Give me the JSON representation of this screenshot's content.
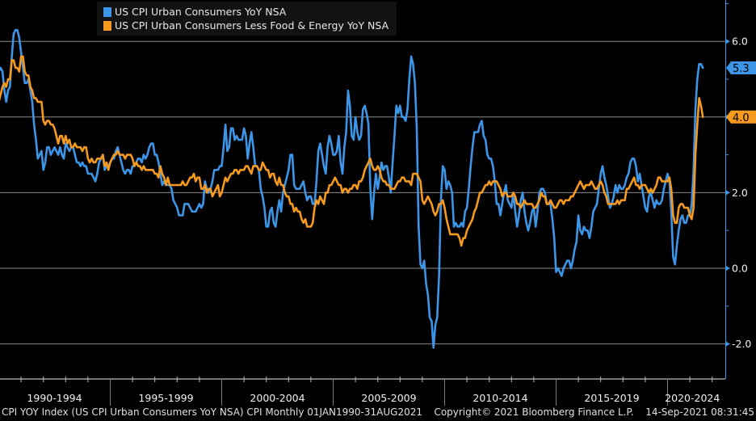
{
  "legend": {
    "items": [
      {
        "label": "US CPI Urban Consumers YoY NSA",
        "color": "#3d95e8"
      },
      {
        "label": "US CPI Urban Consumers Less Food & Energy YoY NSA",
        "color": "#f59a1f"
      }
    ]
  },
  "footer": {
    "security": "CPI YOY Index (US CPI Urban Consumers YoY NSA) CPI  Monthly 01JAN1990-31AUG2021",
    "copyright": "Copyright© 2021 Bloomberg Finance L.P.",
    "timestamp": "14-Sep-2021 08:31:45"
  },
  "chart_data": {
    "type": "line",
    "title": "",
    "xlabel": "",
    "ylabel": "",
    "frequency": "monthly",
    "x_start": "1990-01",
    "x_end": "2021-08",
    "x_tick_labels": [
      "1990-1994",
      "1995-1999",
      "2000-2004",
      "2005-2009",
      "2010-2014",
      "2015-2019",
      "2020-2024"
    ],
    "y_ticks": [
      6.0,
      4.0,
      2.0,
      0.0,
      -2.0
    ],
    "y_tick_labels": [
      "6.0",
      "4.0",
      "2.0",
      "0.0",
      "-2.0"
    ],
    "ylim": [
      -2.8,
      7.0
    ],
    "grid": true,
    "legend_position": "top-left",
    "axis_side": "right",
    "last_value_tags": [
      {
        "series": "US CPI Urban Consumers YoY NSA",
        "label": "5.3",
        "value": 5.3,
        "color": "#3d95e8"
      },
      {
        "series": "US CPI Urban Consumers Less Food & Energy YoY NSA",
        "label": "4.0",
        "value": 4.0,
        "color": "#f59a1f"
      }
    ],
    "series": [
      {
        "name": "US CPI Urban Consumers YoY NSA",
        "color": "#3d95e8",
        "values": [
          5.2,
          5.3,
          5.2,
          4.7,
          4.4,
          4.7,
          4.8,
          5.6,
          6.2,
          6.3,
          6.3,
          6.1,
          5.7,
          5.3,
          4.9,
          4.9,
          5.0,
          4.7,
          4.4,
          3.8,
          3.4,
          2.9,
          3.0,
          3.1,
          2.6,
          2.8,
          3.2,
          3.2,
          3.0,
          3.1,
          3.2,
          3.1,
          3.0,
          3.2,
          3.0,
          2.9,
          3.3,
          3.2,
          3.1,
          3.2,
          3.2,
          3.0,
          2.8,
          2.8,
          2.7,
          2.8,
          2.7,
          2.7,
          2.5,
          2.5,
          2.5,
          2.4,
          2.3,
          2.5,
          2.8,
          2.9,
          3.0,
          2.6,
          2.7,
          2.7,
          2.8,
          2.9,
          2.9,
          3.1,
          3.2,
          3.0,
          2.8,
          2.6,
          2.5,
          2.6,
          2.6,
          2.5,
          2.7,
          2.7,
          2.8,
          2.9,
          2.9,
          2.8,
          3.0,
          2.9,
          3.0,
          3.2,
          3.3,
          3.3,
          3.0,
          3.0,
          2.8,
          2.5,
          2.2,
          2.3,
          2.2,
          2.2,
          2.2,
          2.1,
          1.8,
          1.7,
          1.6,
          1.4,
          1.4,
          1.4,
          1.7,
          1.7,
          1.7,
          1.6,
          1.5,
          1.5,
          1.5,
          1.6,
          1.7,
          1.6,
          1.7,
          2.3,
          2.1,
          2.0,
          2.1,
          2.3,
          2.6,
          2.6,
          2.6,
          2.7,
          2.7,
          3.2,
          3.8,
          3.1,
          3.2,
          3.7,
          3.7,
          3.4,
          3.5,
          3.4,
          3.4,
          3.4,
          3.7,
          3.5,
          2.9,
          3.3,
          3.6,
          3.2,
          2.7,
          2.7,
          2.6,
          2.1,
          1.9,
          1.6,
          1.1,
          1.1,
          1.5,
          1.6,
          1.2,
          1.1,
          1.5,
          1.8,
          1.5,
          2.0,
          2.2,
          2.4,
          2.6,
          3.0,
          3.0,
          2.2,
          2.1,
          2.1,
          2.1,
          2.2,
          2.3,
          2.0,
          1.8,
          1.9,
          1.9,
          1.7,
          1.7,
          2.3,
          3.1,
          3.3,
          3.0,
          2.7,
          2.5,
          3.2,
          3.5,
          3.3,
          3.0,
          3.0,
          3.1,
          3.5,
          2.8,
          2.5,
          3.2,
          3.6,
          4.7,
          4.3,
          3.5,
          3.4,
          4.0,
          3.6,
          3.4,
          3.5,
          4.2,
          4.3,
          4.1,
          3.8,
          2.1,
          1.3,
          2.0,
          2.5,
          2.1,
          2.4,
          2.8,
          2.6,
          2.7,
          2.7,
          2.4,
          2.0,
          2.8,
          3.5,
          4.3,
          4.1,
          4.3,
          4.0,
          4.0,
          3.9,
          4.2,
          5.0,
          5.6,
          5.4,
          4.9,
          3.7,
          1.1,
          0.1,
          0.0,
          0.2,
          -0.4,
          -0.7,
          -1.3,
          -1.4,
          -2.1,
          -1.5,
          -1.3,
          -0.2,
          1.8,
          2.7,
          2.6,
          2.1,
          2.3,
          2.2,
          2.0,
          1.1,
          1.2,
          1.1,
          1.1,
          1.2,
          1.1,
          1.5,
          1.6,
          2.1,
          2.7,
          3.2,
          3.6,
          3.6,
          3.6,
          3.8,
          3.9,
          3.5,
          3.4,
          3.0,
          2.9,
          2.9,
          2.7,
          2.3,
          1.7,
          1.7,
          1.4,
          1.7,
          2.0,
          2.2,
          1.8,
          1.7,
          1.6,
          2.0,
          1.5,
          1.1,
          1.4,
          1.8,
          2.0,
          1.5,
          1.2,
          1.0,
          1.2,
          1.5,
          1.6,
          1.1,
          1.5,
          2.0,
          2.1,
          2.1,
          2.0,
          1.7,
          1.7,
          1.7,
          1.3,
          0.8,
          -0.1,
          0.0,
          -0.1,
          -0.2,
          0.0,
          0.1,
          0.2,
          0.2,
          0.0,
          0.2,
          0.5,
          0.7,
          1.4,
          1.0,
          0.9,
          1.1,
          1.0,
          1.0,
          0.8,
          1.1,
          1.5,
          1.6,
          1.7,
          2.1,
          2.5,
          2.7,
          2.4,
          2.2,
          1.9,
          1.6,
          1.7,
          1.9,
          2.2,
          2.0,
          2.2,
          2.1,
          2.1,
          2.2,
          2.4,
          2.5,
          2.8,
          2.9,
          2.9,
          2.7,
          2.3,
          2.5,
          2.2,
          1.9,
          1.6,
          1.5,
          1.9,
          2.0,
          1.8,
          1.6,
          1.8,
          1.7,
          1.7,
          1.8,
          2.1,
          2.3,
          2.5,
          2.3,
          1.5,
          0.3,
          0.1,
          0.6,
          1.0,
          1.3,
          1.4,
          1.2,
          1.2,
          1.4,
          1.4,
          1.7,
          2.6,
          4.2,
          5.0,
          5.4,
          5.4,
          5.3
        ]
      },
      {
        "name": "US CPI Urban Consumers Less Food & Energy YoY NSA",
        "color": "#f59a1f",
        "values": [
          4.4,
          4.6,
          4.8,
          4.9,
          4.8,
          5.0,
          5.0,
          5.5,
          5.5,
          5.3,
          5.3,
          5.2,
          5.6,
          5.6,
          5.2,
          5.1,
          5.1,
          4.8,
          4.7,
          4.5,
          4.5,
          4.4,
          4.4,
          4.4,
          3.9,
          3.8,
          3.9,
          3.9,
          3.8,
          3.8,
          3.7,
          3.5,
          3.3,
          3.5,
          3.5,
          3.3,
          3.5,
          3.3,
          3.4,
          3.2,
          3.2,
          3.3,
          3.2,
          3.2,
          3.2,
          3.1,
          3.2,
          3.2,
          2.9,
          2.8,
          2.9,
          2.8,
          2.8,
          2.9,
          2.9,
          2.9,
          3.0,
          2.7,
          2.8,
          2.6,
          2.8,
          2.9,
          3.0,
          3.0,
          3.1,
          3.0,
          3.0,
          3.0,
          2.9,
          3.0,
          3.0,
          3.0,
          2.9,
          2.7,
          2.8,
          2.7,
          2.7,
          2.6,
          2.7,
          2.6,
          2.6,
          2.6,
          2.6,
          2.6,
          2.5,
          2.5,
          2.4,
          2.7,
          2.5,
          2.4,
          2.2,
          2.4,
          2.2,
          2.2,
          2.2,
          2.2,
          2.2,
          2.2,
          2.2,
          2.3,
          2.2,
          2.2,
          2.3,
          2.4,
          2.4,
          2.5,
          2.3,
          2.4,
          2.4,
          2.1,
          2.1,
          2.2,
          2.0,
          2.1,
          2.1,
          1.9,
          2.0,
          2.1,
          2.2,
          1.9,
          2.0,
          2.2,
          2.4,
          2.3,
          2.4,
          2.5,
          2.5,
          2.6,
          2.6,
          2.5,
          2.6,
          2.6,
          2.6,
          2.7,
          2.7,
          2.6,
          2.5,
          2.7,
          2.7,
          2.7,
          2.6,
          2.6,
          2.8,
          2.7,
          2.6,
          2.6,
          2.4,
          2.5,
          2.5,
          2.3,
          2.2,
          2.4,
          2.2,
          2.2,
          2.0,
          1.9,
          1.9,
          1.7,
          1.7,
          1.5,
          1.6,
          1.5,
          1.5,
          1.3,
          1.2,
          1.3,
          1.1,
          1.1,
          1.1,
          1.2,
          1.6,
          1.8,
          1.7,
          1.9,
          1.8,
          1.7,
          2.0,
          2.0,
          2.2,
          2.2,
          2.3,
          2.4,
          2.3,
          2.2,
          2.2,
          2.0,
          2.1,
          2.1,
          2.0,
          2.1,
          2.1,
          2.2,
          2.2,
          2.1,
          2.3,
          2.3,
          2.4,
          2.6,
          2.7,
          2.8,
          2.9,
          2.7,
          2.6,
          2.6,
          2.7,
          2.6,
          2.4,
          2.3,
          2.3,
          2.2,
          2.2,
          2.1,
          2.1,
          2.1,
          2.2,
          2.3,
          2.3,
          2.4,
          2.4,
          2.3,
          2.3,
          2.3,
          2.2,
          2.5,
          2.5,
          2.5,
          2.4,
          2.3,
          1.8,
          1.7,
          1.8,
          1.9,
          1.8,
          1.7,
          1.5,
          1.4,
          1.5,
          1.7,
          1.7,
          1.8,
          1.6,
          1.3,
          1.1,
          0.9,
          0.9,
          0.9,
          0.9,
          0.9,
          0.8,
          0.6,
          0.8,
          0.8,
          1.0,
          1.1,
          1.2,
          1.3,
          1.5,
          1.6,
          1.8,
          2.0,
          2.0,
          2.1,
          2.2,
          2.2,
          2.3,
          2.2,
          2.3,
          2.3,
          2.3,
          2.2,
          2.1,
          1.9,
          2.0,
          2.0,
          1.9,
          1.9,
          1.9,
          2.0,
          1.9,
          1.7,
          1.7,
          1.6,
          1.7,
          1.8,
          1.7,
          1.7,
          1.7,
          1.7,
          1.6,
          1.6,
          1.7,
          1.8,
          2.0,
          1.9,
          1.9,
          1.7,
          1.7,
          1.8,
          1.7,
          1.6,
          1.6,
          1.7,
          1.8,
          1.8,
          1.7,
          1.8,
          1.8,
          1.8,
          1.9,
          1.9,
          2.0,
          2.1,
          2.2,
          2.3,
          2.2,
          2.1,
          2.2,
          2.2,
          2.2,
          2.3,
          2.2,
          2.1,
          2.1,
          2.2,
          2.3,
          2.2,
          2.0,
          1.9,
          1.7,
          1.7,
          1.7,
          1.7,
          1.7,
          1.8,
          1.7,
          1.8,
          1.8,
          1.8,
          2.1,
          2.1,
          2.2,
          2.3,
          2.4,
          2.2,
          2.2,
          2.1,
          2.2,
          2.2,
          2.2,
          2.1,
          2.0,
          2.1,
          2.0,
          2.1,
          2.2,
          2.4,
          2.4,
          2.3,
          2.3,
          2.3,
          2.3,
          2.4,
          2.1,
          1.4,
          1.2,
          1.2,
          1.6,
          1.7,
          1.7,
          1.6,
          1.6,
          1.6,
          1.4,
          1.3,
          1.6,
          3.0,
          3.8,
          4.5,
          4.3,
          4.0
        ]
      }
    ]
  }
}
